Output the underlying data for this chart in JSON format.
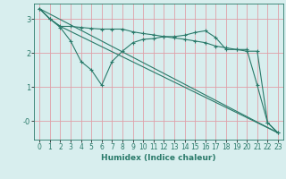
{
  "xlabel": "Humidex (Indice chaleur)",
  "bg_color": "#d8eeee",
  "grid_color": "#e0a0a8",
  "line_color": "#2a7a6a",
  "xlim": [
    -0.5,
    23.5
  ],
  "ylim": [
    -0.55,
    3.45
  ],
  "yticks": [
    0,
    1,
    2,
    3
  ],
  "ytick_labels": [
    "-0",
    "1",
    "2",
    "3"
  ],
  "xticks": [
    0,
    1,
    2,
    3,
    4,
    5,
    6,
    7,
    8,
    9,
    10,
    11,
    12,
    13,
    14,
    15,
    16,
    17,
    18,
    19,
    20,
    21,
    22,
    23
  ],
  "line1_x": [
    0,
    1,
    2,
    3,
    4,
    5,
    6,
    7,
    8,
    9,
    10,
    11,
    12,
    13,
    14,
    15,
    16,
    17,
    18,
    19,
    20,
    21,
    22,
    23
  ],
  "line1_y": [
    3.3,
    3.0,
    2.75,
    2.35,
    1.75,
    1.5,
    1.05,
    1.75,
    2.05,
    2.3,
    2.4,
    2.42,
    2.48,
    2.48,
    2.52,
    2.6,
    2.65,
    2.45,
    2.1,
    2.1,
    2.1,
    1.05,
    -0.05,
    -0.35
  ],
  "line2_x": [
    0,
    1,
    2,
    3,
    4,
    5,
    6,
    7,
    8,
    9,
    10,
    11,
    12,
    13,
    14,
    15,
    16,
    17,
    18,
    19,
    20,
    21,
    22,
    23
  ],
  "line2_y": [
    3.3,
    3.0,
    2.78,
    2.78,
    2.75,
    2.72,
    2.7,
    2.7,
    2.7,
    2.62,
    2.57,
    2.53,
    2.48,
    2.44,
    2.4,
    2.35,
    2.3,
    2.2,
    2.15,
    2.1,
    2.05,
    2.05,
    -0.05,
    -0.35
  ],
  "line3_x": [
    0,
    23
  ],
  "line3_y": [
    3.3,
    -0.35
  ],
  "line4_x": [
    0,
    1,
    2,
    23
  ],
  "line4_y": [
    3.3,
    3.0,
    2.78,
    -0.35
  ]
}
